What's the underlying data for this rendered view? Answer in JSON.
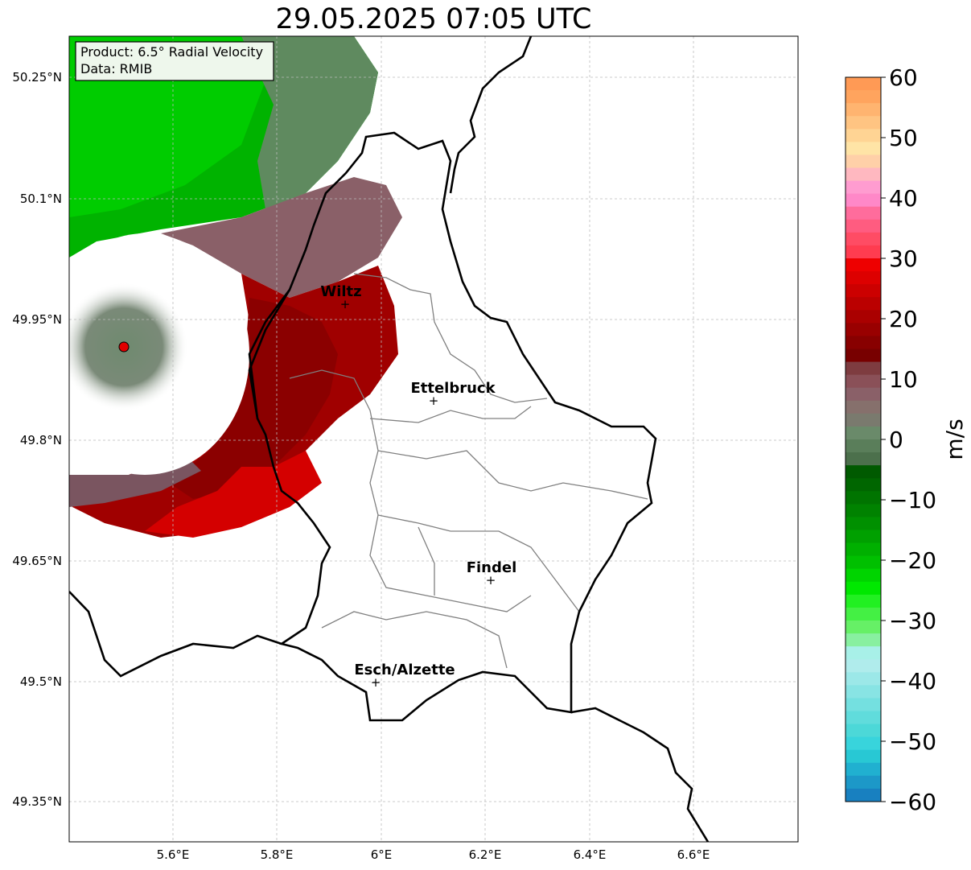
{
  "title": "29.05.2025 07:05 UTC",
  "info_box": {
    "product": "Product: 6.5° Radial Velocity",
    "data": "Data: RMIB"
  },
  "axes": {
    "lat_ticks": [
      "50.25°N",
      "50.1°N",
      "49.95°N",
      "49.8°N",
      "49.65°N",
      "49.5°N",
      "49.35°N"
    ],
    "lon_ticks": [
      "5.6°E",
      "5.8°E",
      "6°E",
      "6.2°E",
      "6.4°E",
      "6.6°E"
    ],
    "lon_range": [
      5.4,
      6.8
    ],
    "lat_range": [
      49.3,
      50.3
    ],
    "grid": true
  },
  "cities": [
    {
      "name": "Wiltz",
      "lon": 5.935,
      "lat": 49.966
    },
    {
      "name": "Ettelbruck",
      "lon": 6.104,
      "lat": 49.848
    },
    {
      "name": "Findel",
      "lon": 6.211,
      "lat": 49.627
    },
    {
      "name": "Esch/Alzette",
      "lon": 5.99,
      "lat": 49.499
    }
  ],
  "radar_site": {
    "lon": 5.506,
    "lat": 49.914
  },
  "colorbar": {
    "label": "m/s",
    "min": -60,
    "max": 60,
    "ticks": [
      "60",
      "50",
      "40",
      "30",
      "20",
      "10",
      "0",
      "−10",
      "−20",
      "−30",
      "−40",
      "−50",
      "−60"
    ]
  },
  "colors": {
    "receding_dark": "#7a0000",
    "receding_bright": "#e00000",
    "approaching_dark": "#006400",
    "approaching_bright": "#00cc00",
    "near_zero_green": "#5c8a5c",
    "near_zero_mauve": "#8a6068",
    "border": "#000000",
    "canton_border": "#808080"
  }
}
